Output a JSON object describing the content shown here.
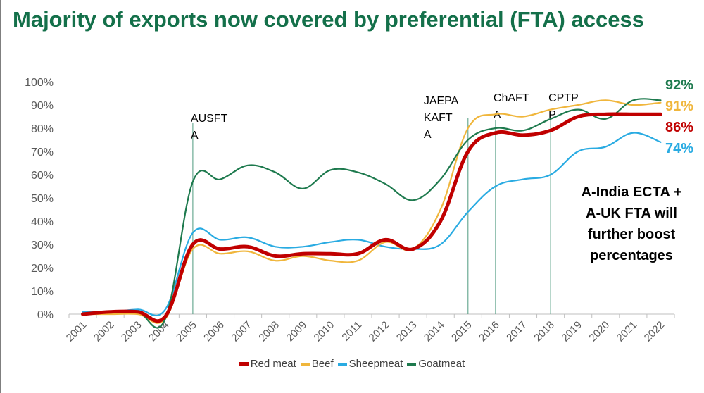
{
  "title": "Majority of exports now covered by preferential (FTA) access",
  "note": "A-India ECTA + A-UK FTA will further boost percentages",
  "chart_data": {
    "type": "line",
    "title": "Majority of exports now covered by preferential (FTA) access",
    "xlabel": "",
    "ylabel": "",
    "x": [
      "2001",
      "2002",
      "2003",
      "2004",
      "2005",
      "2006",
      "2007",
      "2008",
      "2009",
      "2010",
      "2011",
      "2012",
      "2013",
      "2014",
      "2015",
      "2016",
      "2017",
      "2018",
      "2019",
      "2020",
      "2021",
      "2022"
    ],
    "ylim": [
      0,
      100
    ],
    "yticks": [
      "0%",
      "10%",
      "20%",
      "30%",
      "40%",
      "50%",
      "60%",
      "70%",
      "80%",
      "90%",
      "100%"
    ],
    "grid": false,
    "legend_position": "bottom",
    "series": [
      {
        "name": "Red meat",
        "color": "#c00000",
        "values": [
          0,
          1,
          1,
          -1,
          30,
          28,
          29,
          25,
          26,
          26,
          26,
          32,
          28,
          40,
          70,
          78,
          77,
          79,
          85,
          86,
          86,
          86
        ],
        "end_label": "86%"
      },
      {
        "name": "Beef",
        "color": "#f0b63c",
        "values": [
          0,
          0,
          0,
          -2,
          28,
          26,
          27,
          23,
          25,
          23,
          23,
          31,
          28,
          45,
          80,
          86,
          85,
          88,
          90,
          92,
          90,
          91
        ],
        "end_label": "91%"
      },
      {
        "name": "Sheepmeat",
        "color": "#29abe2",
        "values": [
          1,
          1,
          2,
          2,
          35,
          32,
          33,
          29,
          29,
          31,
          32,
          29,
          28,
          30,
          44,
          55,
          58,
          60,
          70,
          72,
          78,
          74
        ],
        "end_label": "74%"
      },
      {
        "name": "Goatmeat",
        "color": "#1e7a4e",
        "values": [
          0,
          1,
          1,
          -2,
          57,
          58,
          64,
          61,
          54,
          62,
          61,
          56,
          49,
          58,
          75,
          80,
          79,
          84,
          88,
          84,
          92,
          92
        ],
        "end_label": "92%"
      }
    ],
    "annotations": [
      {
        "x": "2005",
        "lines": [
          "AUSFT",
          "A"
        ]
      },
      {
        "x": "2015",
        "lines": [
          "JAEPA",
          "KAFT",
          "A"
        ]
      },
      {
        "x": "2016",
        "lines": [
          "ChAFT",
          "A"
        ]
      },
      {
        "x": "2018",
        "lines": [
          "CPTP",
          "P"
        ]
      }
    ]
  }
}
